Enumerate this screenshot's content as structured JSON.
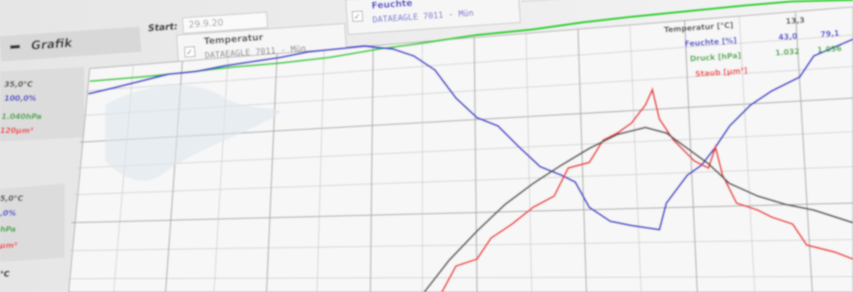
{
  "header": {
    "section": "Grafik",
    "start_label": "Start:",
    "start_value": "29.9.20"
  },
  "sensors": [
    {
      "name": "Temperatur",
      "device": "DATAEAGLE 7011 - Mün"
    },
    {
      "name": "Feuchte",
      "device": "DATAEAGLE 7011 - Mün"
    }
  ],
  "scale_top": [
    "35,0°C",
    "100,0%",
    "1.040hPa",
    "120µm³"
  ],
  "scale_mid": [
    "5,0°C",
    ",0%",
    "hPa",
    "µm³"
  ],
  "scale_low": [
    "°C"
  ],
  "legend": [
    [
      "Temperatur [°C]",
      "13,3"
    ],
    [
      "Feuchte [%]",
      "43,0",
      "79,1"
    ],
    [
      "Druck [hPa]",
      "1.032",
      "1.036"
    ],
    [
      "Staub [µm³]"
    ]
  ]
}
